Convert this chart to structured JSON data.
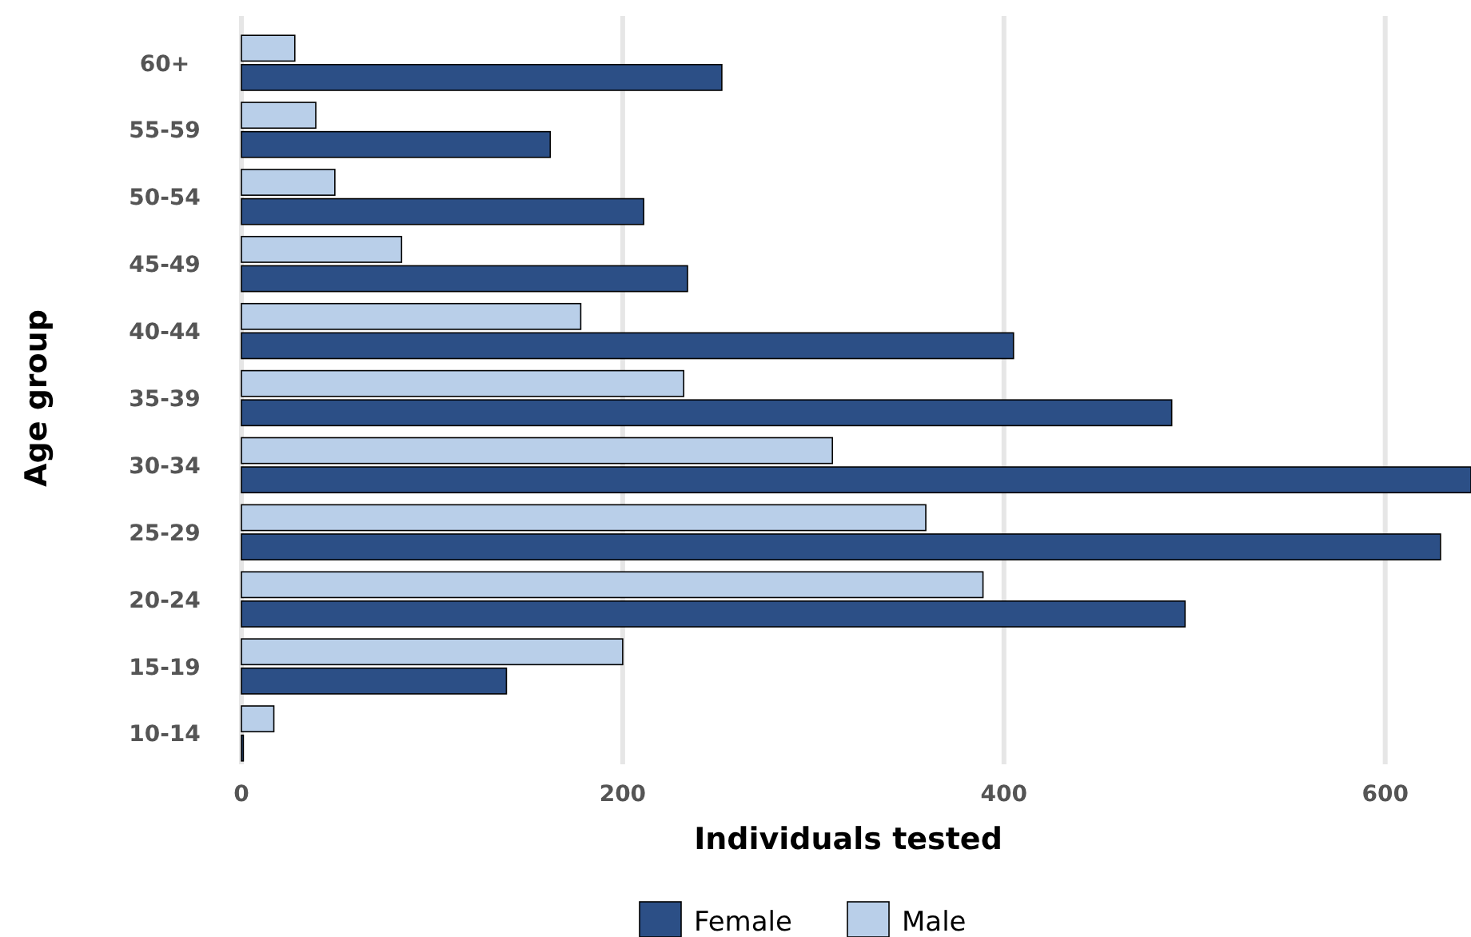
{
  "chart_data": {
    "type": "bar",
    "orientation": "horizontal",
    "xlabel": "Individuals tested",
    "ylabel": "Age group",
    "categories": [
      "60+",
      "55-59",
      "50-54",
      "45-49",
      "40-44",
      "35-39",
      "30-34",
      "25-29",
      "20-24",
      "15-19",
      "10-14"
    ],
    "series": [
      {
        "name": "Female",
        "color": "#2c4f86",
        "values": [
          252,
          162,
          211,
          234,
          405,
          488,
          645,
          629,
          495,
          139,
          1
        ]
      },
      {
        "name": "Male",
        "color": "#b9cfe9",
        "values": [
          28,
          39,
          49,
          84,
          178,
          232,
          310,
          359,
          389,
          200,
          17
        ]
      }
    ],
    "xlim": [
      0,
      645
    ],
    "xticks": [
      0,
      200,
      400,
      600
    ],
    "grid": "x",
    "legend": "bottom"
  }
}
